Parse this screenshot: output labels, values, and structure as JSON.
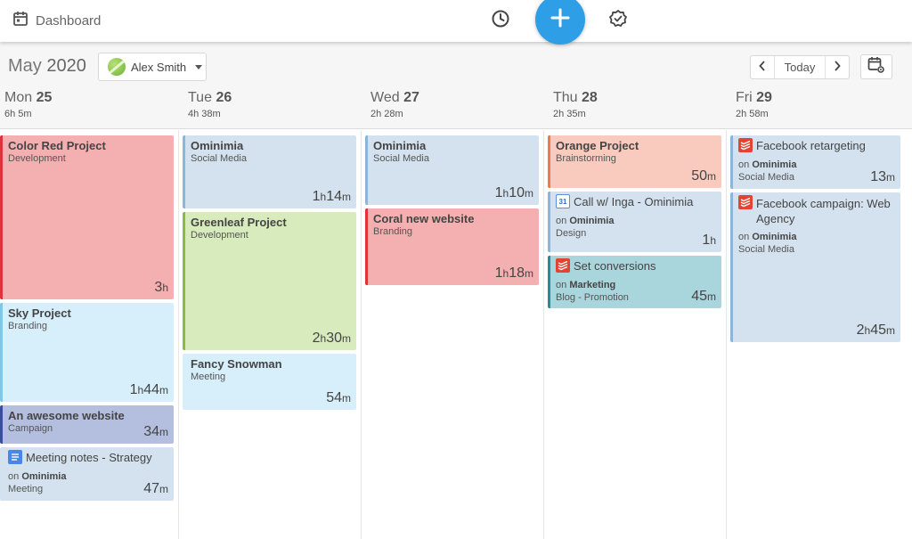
{
  "topbar": {
    "title": "Dashboard"
  },
  "toolbar": {
    "month": "May",
    "year": "2020",
    "user": "Alex Smith",
    "today_label": "Today"
  },
  "days": [
    {
      "name": "Mon",
      "num": "25",
      "total": "6h 5m"
    },
    {
      "name": "Tue",
      "num": "26",
      "total": "4h 38m"
    },
    {
      "name": "Wed",
      "num": "27",
      "total": "2h 28m"
    },
    {
      "name": "Thu",
      "num": "28",
      "total": "2h 35m"
    },
    {
      "name": "Fri",
      "num": "29",
      "total": "2h 58m"
    }
  ],
  "colors": {
    "accent": "#2e9fe6",
    "red": "#f4b3b3",
    "blue": "#d2e2ee",
    "green": "#d7ecbc",
    "orange": "#f9ccc0",
    "teal": "#a9d6dd",
    "navy": "#b5bfde",
    "light_blue": "#d6eefb"
  },
  "events": {
    "mon": [
      {
        "title": "Color Red Project",
        "sub": "Development",
        "dur_a": "3",
        "dur_ua": "h",
        "dur_b": "",
        "dur_ub": ""
      },
      {
        "title": "Sky Project",
        "sub": "Branding",
        "dur_a": "1",
        "dur_ua": "h",
        "dur_b": "44",
        "dur_ub": "m"
      },
      {
        "title": "An awesome website",
        "sub": "Campaign",
        "dur_a": "34",
        "dur_ua": "m",
        "dur_b": "",
        "dur_ub": ""
      },
      {
        "title": "Meeting notes - Strategy",
        "on_label": "on",
        "on_org": "Ominimia",
        "sub": "Meeting",
        "dur_a": "47",
        "dur_ua": "m",
        "dur_b": "",
        "dur_ub": "",
        "icon": "google-docs-icon"
      }
    ],
    "tue": [
      {
        "title": "Ominimia",
        "sub": "Social Media",
        "dur_a": "1",
        "dur_ua": "h",
        "dur_b": "14",
        "dur_ub": "m"
      },
      {
        "title": "Greenleaf Project",
        "sub": "Development",
        "dur_a": "2",
        "dur_ua": "h",
        "dur_b": "30",
        "dur_ub": "m"
      },
      {
        "title": "Fancy Snowman",
        "sub": "Meeting",
        "dur_a": "54",
        "dur_ua": "m",
        "dur_b": "",
        "dur_ub": ""
      }
    ],
    "wed": [
      {
        "title": "Ominimia",
        "sub": "Social Media",
        "dur_a": "1",
        "dur_ua": "h",
        "dur_b": "10",
        "dur_ub": "m"
      },
      {
        "title": "Coral new website",
        "sub": "Branding",
        "dur_a": "1",
        "dur_ua": "h",
        "dur_b": "18",
        "dur_ub": "m"
      }
    ],
    "thu": [
      {
        "title": "Orange Project",
        "sub": "Brainstorming",
        "dur_a": "50",
        "dur_ua": "m",
        "dur_b": "",
        "dur_ub": ""
      },
      {
        "title": "Call w/ Inga - Ominimia",
        "on_label": "on",
        "on_org": "Ominimia",
        "sub": "Design",
        "dur_a": "1",
        "dur_ua": "h",
        "dur_b": "",
        "dur_ub": "",
        "icon": "google-calendar-icon",
        "icon_text": "31"
      },
      {
        "title": "Set conversions",
        "on_label": "on",
        "on_org": "Marketing",
        "sub": "Blog - Promotion",
        "dur_a": "45",
        "dur_ua": "m",
        "dur_b": "",
        "dur_ub": "",
        "icon": "todoist-icon"
      }
    ],
    "fri": [
      {
        "title": "Facebook retargeting",
        "on_label": "on",
        "on_org": "Ominimia",
        "sub": "Social Media",
        "dur_a": "13",
        "dur_ua": "m",
        "dur_b": "",
        "dur_ub": "",
        "icon": "todoist-icon"
      },
      {
        "title": "Facebook campaign: Web Agency",
        "on_label": "on",
        "on_org": "Ominimia",
        "sub": "Social Media",
        "dur_a": "2",
        "dur_ua": "h",
        "dur_b": "45",
        "dur_ub": "m",
        "icon": "todoist-icon"
      }
    ]
  }
}
